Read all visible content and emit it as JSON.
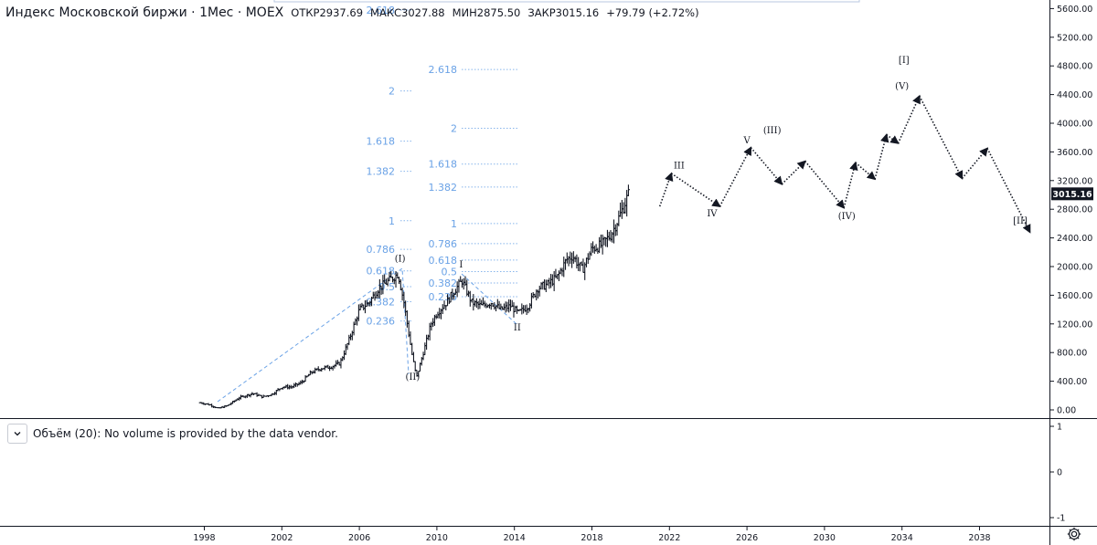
{
  "header": {
    "title": "Индекс Московской биржи · 1Мес · MOEX",
    "open_label": "ОТКР",
    "open": "2937.69",
    "high_label": "МАКС",
    "high": "3027.88",
    "low_label": "МИН",
    "low": "2875.50",
    "close_label": "ЗАКР",
    "close": "3015.16",
    "change": "+79.79 (+2.72%)"
  },
  "volume_panel": {
    "text": "Объём (20): No volume is provided by the data vendor.",
    "axis_labels": [
      "1",
      "0",
      "-1"
    ]
  },
  "price_badge": {
    "value": "3015.16",
    "price": 3015.16
  },
  "colors": {
    "candle": "#131722",
    "fib": "#6aa2e6",
    "badge": "#131722",
    "grid": "#e0e3eb"
  },
  "icons": {
    "collapse": "chevron-down-icon",
    "settings": "gear-icon"
  },
  "chart_data": {
    "type": "ohlc",
    "y_axis": {
      "min": 0,
      "max": 5600,
      "step": 400,
      "tick_labels": [
        "0.00",
        "400.00",
        "800.00",
        "1200.00",
        "1600.00",
        "2000.00",
        "2400.00",
        "2800.00",
        "3200.00",
        "3600.00",
        "4000.00",
        "4400.00",
        "4800.00",
        "5200.00",
        "5600.00"
      ]
    },
    "x_axis": {
      "min": 1997.9,
      "max": 2042.8,
      "tick_labels": [
        "1998",
        "2002",
        "2006",
        "2010",
        "2014",
        "2018",
        "2022",
        "2026",
        "2030",
        "2034",
        "2038"
      ],
      "tick_values": [
        1998,
        2002,
        2006,
        2010,
        2014,
        2018,
        2022,
        2026,
        2030,
        2034,
        2038
      ]
    },
    "price_path": [
      [
        1997.8,
        100
      ],
      [
        1998.3,
        70
      ],
      [
        1998.7,
        20
      ],
      [
        1999.2,
        60
      ],
      [
        1999.8,
        170
      ],
      [
        2000.5,
        230
      ],
      [
        2001.0,
        180
      ],
      [
        2001.5,
        220
      ],
      [
        2002.0,
        320
      ],
      [
        2002.5,
        320
      ],
      [
        2003.0,
        380
      ],
      [
        2003.5,
        520
      ],
      [
        2004.0,
        580
      ],
      [
        2004.5,
        600
      ],
      [
        2005.0,
        650
      ],
      [
        2005.5,
        1000
      ],
      [
        2006.0,
        1400
      ],
      [
        2006.5,
        1500
      ],
      [
        2007.0,
        1700
      ],
      [
        2007.5,
        1800
      ],
      [
        2008.0,
        1900
      ],
      [
        2008.3,
        1500
      ],
      [
        2008.7,
        800
      ],
      [
        2008.95,
        450
      ],
      [
        2009.3,
        800
      ],
      [
        2009.7,
        1200
      ],
      [
        2010.0,
        1350
      ],
      [
        2010.5,
        1500
      ],
      [
        2011.0,
        1700
      ],
      [
        2011.3,
        1800
      ],
      [
        2011.8,
        1500
      ],
      [
        2012.3,
        1450
      ],
      [
        2012.8,
        1500
      ],
      [
        2013.3,
        1400
      ],
      [
        2013.8,
        1450
      ],
      [
        2014.2,
        1350
      ],
      [
        2014.7,
        1450
      ],
      [
        2015.2,
        1700
      ],
      [
        2015.7,
        1750
      ],
      [
        2016.2,
        1850
      ],
      [
        2016.7,
        2100
      ],
      [
        2017.0,
        2150
      ],
      [
        2017.5,
        1950
      ],
      [
        2018.0,
        2250
      ],
      [
        2018.5,
        2300
      ],
      [
        2019.0,
        2450
      ],
      [
        2019.5,
        2750
      ],
      [
        2019.9,
        3015
      ]
    ],
    "fib_levels_1": [
      {
        "label": "2.618",
        "value": 5580
      },
      {
        "label": "2",
        "value": 4450
      },
      {
        "label": "1.618",
        "value": 3750
      },
      {
        "label": "1.382",
        "value": 3330
      },
      {
        "label": "1",
        "value": 2640
      },
      {
        "label": "0.786",
        "value": 2240
      },
      {
        "label": "0.618",
        "value": 1940
      },
      {
        "label": "0.5",
        "value": 1720
      },
      {
        "label": "0.382",
        "value": 1510
      },
      {
        "label": "0.236",
        "value": 1240
      }
    ],
    "fib_levels_2": [
      {
        "label": "2.618",
        "value": 4750
      },
      {
        "label": "2",
        "value": 3930
      },
      {
        "label": "1.618",
        "value": 3430
      },
      {
        "label": "1.382",
        "value": 3110
      },
      {
        "label": "1",
        "value": 2600
      },
      {
        "label": "0.786",
        "value": 2320
      },
      {
        "label": "0.618",
        "value": 2090
      },
      {
        "label": "0.5",
        "value": 1930
      },
      {
        "label": "0.382",
        "value": 1770
      },
      {
        "label": "0.236",
        "value": 1580
      }
    ],
    "fib_lines": [
      [
        1999.9,
        1008.5
      ],
      [
        2011.5,
        1770.7
      ]
    ],
    "projection_path": [
      [
        2021.5,
        2840
      ],
      [
        2022.1,
        3300
      ],
      [
        2024.6,
        2840
      ],
      [
        2026.2,
        3660
      ],
      [
        2027.8,
        3150
      ],
      [
        2029.0,
        3470
      ],
      [
        2031.0,
        2820
      ],
      [
        2031.6,
        3450
      ],
      [
        2032.6,
        3220
      ],
      [
        2033.2,
        3840
      ],
      [
        2033.8,
        3720
      ],
      [
        2034.9,
        4380
      ],
      [
        2037.1,
        3230
      ],
      [
        2038.4,
        3650
      ],
      [
        2040.6,
        2480
      ]
    ],
    "wave_labels": [
      {
        "label": "(I)",
        "x": 2008.1,
        "y": 2070
      },
      {
        "label": "(II)",
        "x": 2008.75,
        "y": 420
      },
      {
        "label": "I",
        "x": 2011.25,
        "y": 1990
      },
      {
        "label": "II",
        "x": 2014.15,
        "y": 1110
      },
      {
        "label": "III",
        "x": 2022.5,
        "y": 3370
      },
      {
        "label": "IV",
        "x": 2024.2,
        "y": 2700
      },
      {
        "label": "V",
        "x": 2026.0,
        "y": 3720
      },
      {
        "label": "(III)",
        "x": 2027.3,
        "y": 3860
      },
      {
        "label": "(IV)",
        "x": 2031.15,
        "y": 2660
      },
      {
        "label": "(V)",
        "x": 2034.0,
        "y": 4480
      },
      {
        "label": "[I]",
        "x": 2034.1,
        "y": 4840
      },
      {
        "label": "[II]",
        "x": 2040.1,
        "y": 2600
      }
    ]
  }
}
